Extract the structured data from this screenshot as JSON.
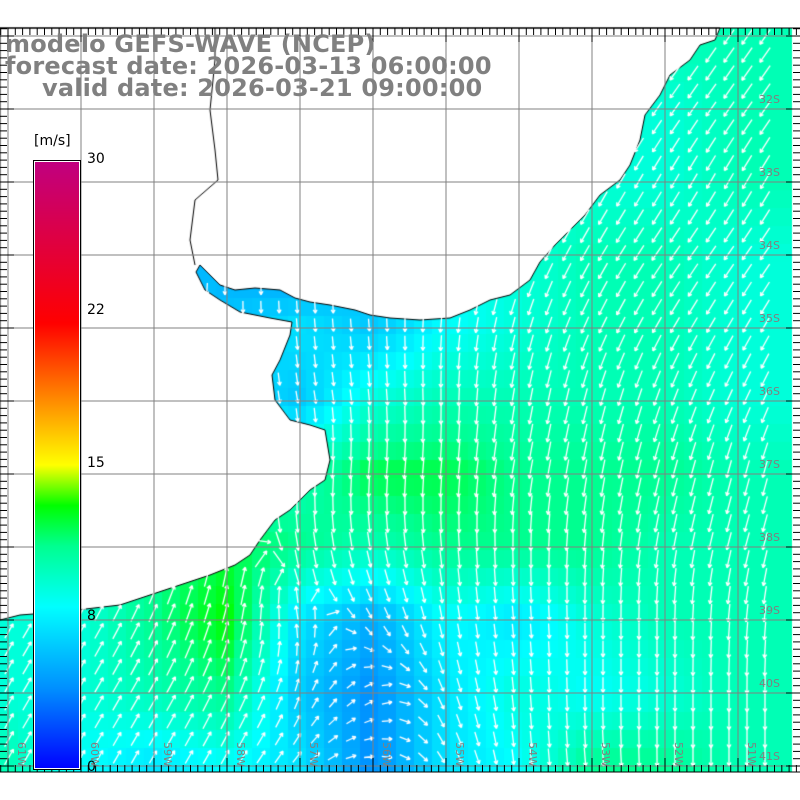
{
  "title": {
    "model": "modelo GEFS-WAVE (NCEP)",
    "forecast": "forecast date: 2026-03-13 06:00:00",
    "valid": "valid date: 2026-03-21 09:00:00"
  },
  "colorbar": {
    "unit": "[m/s]",
    "labels": [
      "30",
      "22",
      "15",
      "8",
      "0"
    ],
    "range": [
      0,
      30
    ],
    "stops": [
      [
        0,
        "#0000ff"
      ],
      [
        4,
        "#0090ff"
      ],
      [
        8,
        "#00ffff"
      ],
      [
        11,
        "#00ff90"
      ],
      [
        13,
        "#00ff00"
      ],
      [
        15,
        "#ffff00"
      ],
      [
        22,
        "#ff0000"
      ],
      [
        30,
        "#c00080"
      ]
    ]
  },
  "axes": {
    "lat_labels": [
      "32S",
      "33S",
      "34S",
      "35S",
      "36S",
      "37S",
      "38S",
      "39S",
      "40S",
      "41S"
    ],
    "lon_labels": [
      "61W",
      "60W",
      "59W",
      "58W",
      "57W",
      "56W",
      "55W",
      "54W",
      "53W",
      "52W",
      "51W"
    ],
    "lon_range": [
      -61,
      -50
    ],
    "lat_range": [
      -31,
      -41
    ]
  },
  "colors": {
    "land": "#ffffff",
    "coast": "#000000",
    "grid": "#808080",
    "arrow": "#ffffff"
  },
  "wind_field": {
    "lons": [
      -61,
      -60,
      -59,
      -58,
      -57,
      -56,
      -55,
      -54,
      -53,
      -52,
      -51,
      -50
    ],
    "lats": [
      -31,
      -32,
      -33,
      -34,
      -35,
      -36,
      -37,
      -38,
      -39,
      -40,
      -41
    ],
    "speed_ms": [
      [
        9,
        9,
        9,
        9,
        9,
        9,
        9,
        9,
        9,
        10,
        10,
        10
      ],
      [
        9,
        9,
        9,
        9,
        9,
        9,
        9,
        9,
        9,
        9,
        10,
        10
      ],
      [
        9,
        9,
        9,
        9,
        9,
        9,
        9,
        9,
        9,
        9,
        10,
        10
      ],
      [
        6,
        6,
        6,
        5,
        4,
        6,
        8,
        9,
        10,
        10,
        9,
        9
      ],
      [
        6,
        6,
        6,
        6,
        7,
        6,
        8,
        9,
        10,
        10,
        9,
        9
      ],
      [
        7,
        7,
        7,
        7,
        6,
        9,
        10,
        10,
        10,
        10,
        9,
        9
      ],
      [
        9,
        9,
        9,
        9,
        10,
        12,
        12,
        11,
        11,
        11,
        10,
        10
      ],
      [
        10,
        10,
        11,
        12,
        11,
        10,
        11,
        11,
        11,
        10,
        10,
        10
      ],
      [
        9,
        9,
        11,
        13,
        7,
        5,
        8,
        7,
        9,
        10,
        10,
        10
      ],
      [
        9,
        9,
        10,
        11,
        6,
        4,
        7,
        9,
        8,
        9,
        10,
        10
      ],
      [
        10,
        8,
        7,
        8,
        7,
        4,
        7,
        8,
        11,
        11,
        10,
        10
      ]
    ],
    "direction_to_deg": [
      [
        215,
        215,
        215,
        215,
        215,
        215,
        215,
        215,
        215,
        215,
        215,
        215
      ],
      [
        215,
        215,
        215,
        215,
        215,
        215,
        215,
        215,
        215,
        215,
        215,
        215
      ],
      [
        210,
        210,
        210,
        210,
        210,
        210,
        210,
        210,
        210,
        210,
        210,
        210
      ],
      [
        200,
        200,
        200,
        180,
        180,
        190,
        195,
        205,
        210,
        215,
        215,
        215
      ],
      [
        200,
        190,
        185,
        180,
        175,
        175,
        185,
        195,
        205,
        210,
        210,
        210
      ],
      [
        190,
        185,
        180,
        175,
        170,
        175,
        180,
        190,
        195,
        200,
        205,
        205
      ],
      [
        185,
        185,
        185,
        185,
        185,
        185,
        185,
        190,
        190,
        195,
        195,
        195
      ],
      [
        20,
        20,
        20,
        10,
        170,
        170,
        175,
        180,
        185,
        190,
        195,
        195
      ],
      [
        30,
        30,
        25,
        15,
        350,
        150,
        170,
        175,
        180,
        180,
        185,
        185
      ],
      [
        30,
        30,
        30,
        25,
        20,
        60,
        160,
        175,
        180,
        180,
        180,
        180
      ],
      [
        30,
        30,
        30,
        30,
        40,
        90,
        150,
        175,
        175,
        180,
        180,
        180
      ]
    ]
  }
}
